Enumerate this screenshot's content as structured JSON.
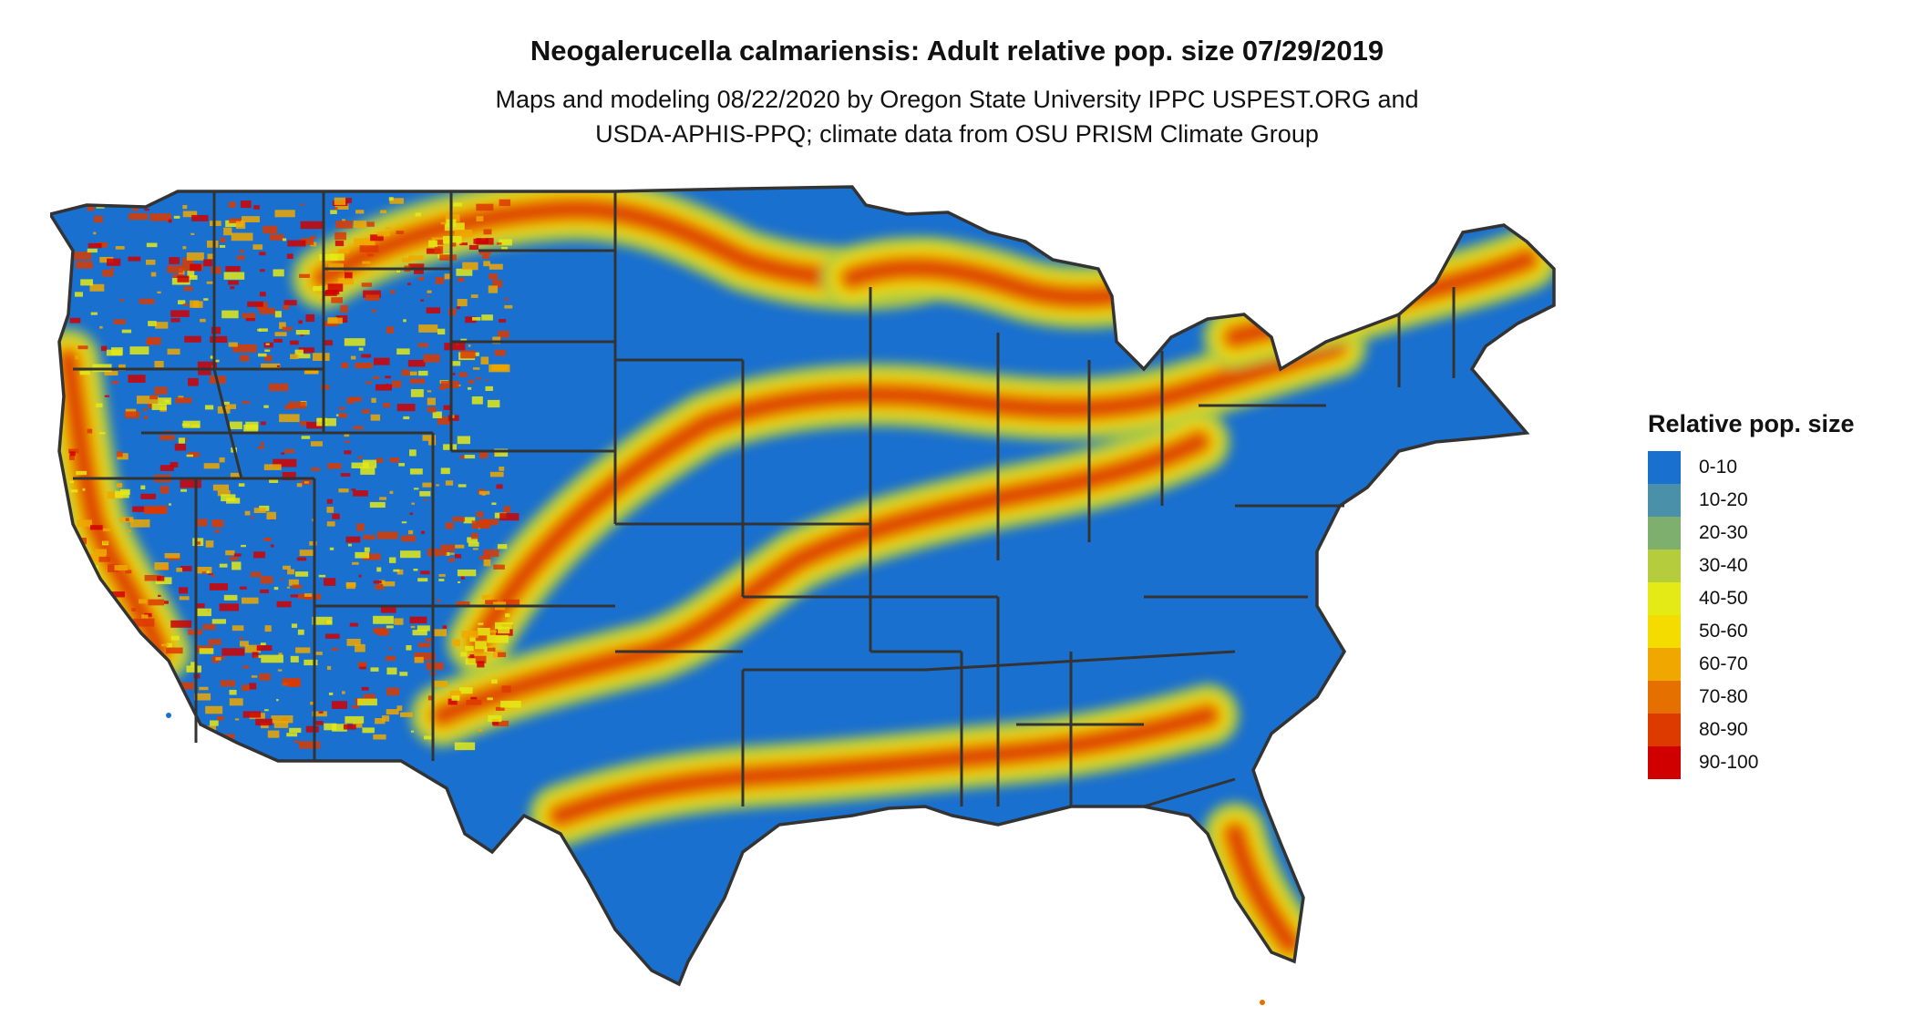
{
  "title": "Neogalerucella calmariensis: Adult relative pop. size 07/29/2019",
  "subtitle": {
    "line1": "Maps and modeling 08/22/2020 by Oregon State University IPPC USPEST.ORG and",
    "line2": "USDA-APHIS-PPQ; climate data from OSU PRISM Climate Group"
  },
  "legend": {
    "title": "Relative pop. size",
    "items": [
      {
        "label": "0-10",
        "color": "#1a70cf"
      },
      {
        "label": "10-20",
        "color": "#4a90a8"
      },
      {
        "label": "20-30",
        "color": "#7eaf6e"
      },
      {
        "label": "30-40",
        "color": "#b5cd3c"
      },
      {
        "label": "40-50",
        "color": "#e4ea15"
      },
      {
        "label": "50-60",
        "color": "#f5dc00"
      },
      {
        "label": "60-70",
        "color": "#f0a800"
      },
      {
        "label": "70-80",
        "color": "#e57000"
      },
      {
        "label": "80-90",
        "color": "#dd3a00"
      },
      {
        "label": "90-100",
        "color": "#d10000"
      }
    ]
  },
  "map": {
    "region": "Contiguous United States",
    "base_color": "#1a70cf",
    "border_color": "#333333"
  }
}
